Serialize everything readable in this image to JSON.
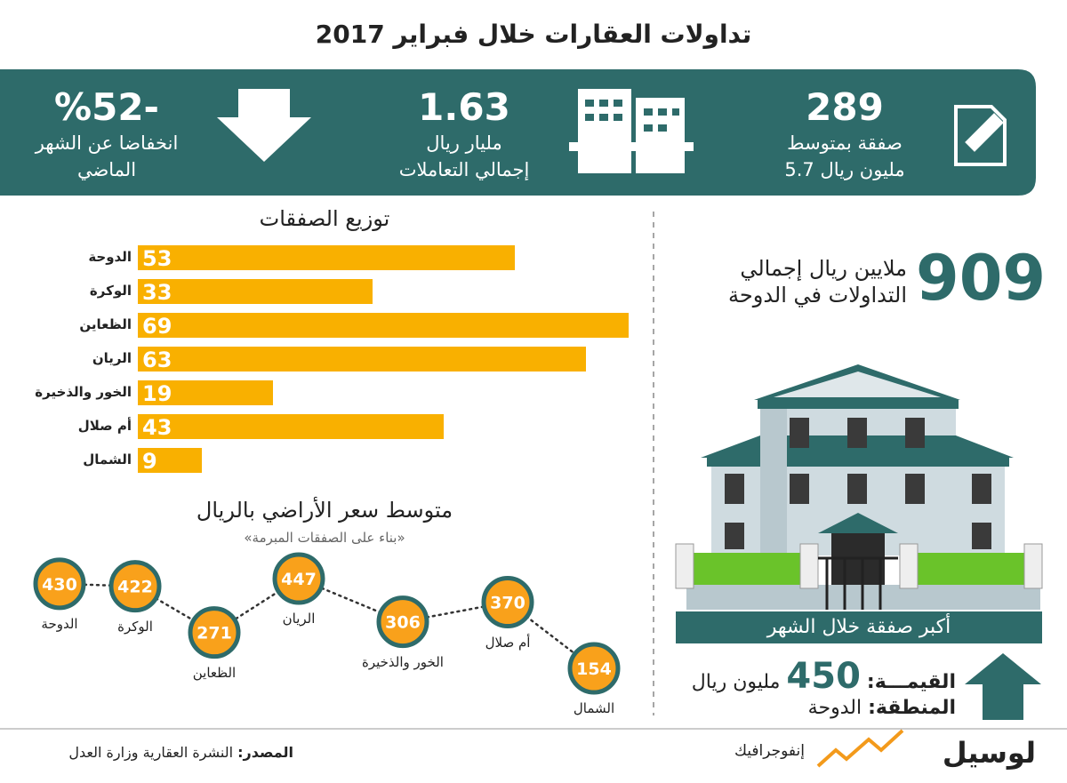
{
  "header": {
    "title": "تداولات العقارات خلال فبراير 2017"
  },
  "stats": [
    {
      "value": "289",
      "lines": [
        "صفقة بمتوسط",
        "5.7 مليون ريال"
      ]
    },
    {
      "value": "1.63",
      "lines": [
        "مليار ريال",
        "إجمالي التعاملات"
      ]
    },
    {
      "value": "%52-",
      "lines": [
        "انخفاضا عن الشهر",
        "الماضي"
      ]
    }
  ],
  "chart_data": [
    {
      "type": "bar",
      "title": "توزيع الصفقات",
      "categories": [
        "الدوحة",
        "الوكرة",
        "الظعاين",
        "الريان",
        "الخور والذخيرة",
        "أم صلال",
        "الشمال"
      ],
      "values": [
        53,
        33,
        69,
        63,
        19,
        43,
        9
      ],
      "color": "#f9b000"
    },
    {
      "type": "line",
      "title": "متوسط سعر الأراضي بالريال",
      "subtitle": "«بناء على الصفقات المبرمة»",
      "categories": [
        "الدوحة",
        "الوكرة",
        "الظعاين",
        "الريان",
        "الخور والذخيرة",
        "أم صلال",
        "الشمال"
      ],
      "values": [
        430,
        422,
        271,
        447,
        306,
        370,
        154
      ],
      "color": "#f9a11b"
    }
  ],
  "doha": {
    "value": "909",
    "lines": [
      "ملايين ريال إجمالي",
      "التداولات في الدوحة"
    ]
  },
  "largest_deal": {
    "banner": "أكبر صفقة خلال الشهر",
    "value_label": "القيمـــة:",
    "value": "450",
    "unit": "مليون ريال",
    "area_label": "المنطقة:",
    "area": "الدوحة"
  },
  "footer": {
    "source_label": "المصدر:",
    "source": "النشرة العقارية وزارة العدل",
    "tag": "إنفوجرافيك",
    "brand": "لوسيل"
  }
}
